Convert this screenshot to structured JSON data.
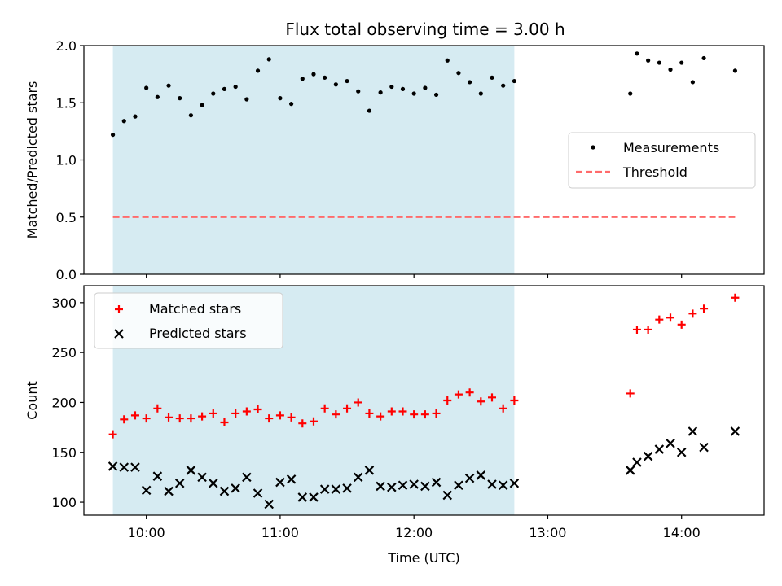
{
  "title": "Flux total observing time = 3.00 h",
  "colors": {
    "shade": "#add8e6",
    "measurement": "#000000",
    "threshold": "#ff6b6b",
    "matched": "#ff0000",
    "predicted": "#000000"
  },
  "chart_data": [
    {
      "type": "scatter",
      "ylabel": "Matched/Predicted stars",
      "xlabel": "",
      "xlim": [
        "09:32",
        "14:37"
      ],
      "ylim": [
        0,
        2.0
      ],
      "yticks": [
        0.0,
        0.5,
        1.0,
        1.5,
        2.0
      ],
      "ytick_labels": [
        "0.0",
        "0.5",
        "1.0",
        "1.5",
        "2.0"
      ],
      "shaded_interval": [
        "09:45",
        "12:45"
      ],
      "legend_position": "center-right",
      "threshold": {
        "name": "Threshold",
        "y": 0.5,
        "x_range": [
          "09:45",
          "14:24"
        ]
      },
      "series": [
        {
          "name": "Measurements",
          "x": [
            "09:45",
            "09:50",
            "09:55",
            "10:00",
            "10:05",
            "10:10",
            "10:15",
            "10:20",
            "10:25",
            "10:30",
            "10:35",
            "10:40",
            "10:45",
            "10:50",
            "10:55",
            "11:00",
            "11:05",
            "11:10",
            "11:15",
            "11:20",
            "11:25",
            "11:30",
            "11:35",
            "11:40",
            "11:45",
            "11:50",
            "11:55",
            "12:00",
            "12:05",
            "12:10",
            "12:15",
            "12:20",
            "12:25",
            "12:30",
            "12:35",
            "12:40",
            "12:45",
            "13:37",
            "13:40",
            "13:45",
            "13:50",
            "13:55",
            "14:00",
            "14:05",
            "14:10",
            "14:24"
          ],
          "y": [
            1.22,
            1.34,
            1.38,
            1.63,
            1.55,
            1.65,
            1.54,
            1.39,
            1.48,
            1.58,
            1.62,
            1.64,
            1.53,
            1.78,
            1.88,
            1.54,
            1.49,
            1.71,
            1.75,
            1.72,
            1.66,
            1.69,
            1.6,
            1.43,
            1.59,
            1.64,
            1.62,
            1.58,
            1.63,
            1.57,
            1.87,
            1.76,
            1.68,
            1.58,
            1.72,
            1.65,
            1.69,
            1.58,
            1.93,
            1.87,
            1.85,
            1.79,
            1.85,
            1.68,
            1.89,
            1.78
          ]
        }
      ]
    },
    {
      "type": "scatter",
      "ylabel": "Count",
      "xlabel": "Time (UTC)",
      "xlim": [
        "09:32",
        "14:37"
      ],
      "ylim": [
        87,
        317
      ],
      "yticks": [
        100,
        150,
        200,
        250,
        300
      ],
      "ytick_labels": [
        "100",
        "150",
        "200",
        "250",
        "300"
      ],
      "xticks": [
        "10:00",
        "11:00",
        "12:00",
        "13:00",
        "14:00"
      ],
      "xtick_labels": [
        "10:00",
        "11:00",
        "12:00",
        "13:00",
        "14:00"
      ],
      "shaded_interval": [
        "09:45",
        "12:45"
      ],
      "legend_position": "upper-left",
      "series": [
        {
          "name": "Matched stars",
          "marker": "plus",
          "x": [
            "09:45",
            "09:50",
            "09:55",
            "10:00",
            "10:05",
            "10:10",
            "10:15",
            "10:20",
            "10:25",
            "10:30",
            "10:35",
            "10:40",
            "10:45",
            "10:50",
            "10:55",
            "11:00",
            "11:05",
            "11:10",
            "11:15",
            "11:20",
            "11:25",
            "11:30",
            "11:35",
            "11:40",
            "11:45",
            "11:50",
            "11:55",
            "12:00",
            "12:05",
            "12:10",
            "12:15",
            "12:20",
            "12:25",
            "12:30",
            "12:35",
            "12:40",
            "12:45",
            "13:37",
            "13:40",
            "13:45",
            "13:50",
            "13:55",
            "14:00",
            "14:05",
            "14:10",
            "14:24"
          ],
          "y": [
            168,
            183,
            187,
            184,
            194,
            185,
            184,
            184,
            186,
            189,
            180,
            189,
            191,
            193,
            184,
            187,
            185,
            179,
            181,
            194,
            188,
            194,
            200,
            189,
            186,
            191,
            191,
            188,
            188,
            189,
            202,
            208,
            210,
            201,
            205,
            194,
            202,
            209,
            273,
            273,
            283,
            285,
            278,
            289,
            294,
            305
          ]
        },
        {
          "name": "Predicted stars",
          "marker": "x",
          "x": [
            "09:45",
            "09:50",
            "09:55",
            "10:00",
            "10:05",
            "10:10",
            "10:15",
            "10:20",
            "10:25",
            "10:30",
            "10:35",
            "10:40",
            "10:45",
            "10:50",
            "10:55",
            "11:00",
            "11:05",
            "11:10",
            "11:15",
            "11:20",
            "11:25",
            "11:30",
            "11:35",
            "11:40",
            "11:45",
            "11:50",
            "11:55",
            "12:00",
            "12:05",
            "12:10",
            "12:15",
            "12:20",
            "12:25",
            "12:30",
            "12:35",
            "12:40",
            "12:45",
            "13:37",
            "13:40",
            "13:45",
            "13:50",
            "13:55",
            "14:00",
            "14:05",
            "14:10",
            "14:24"
          ],
          "y": [
            136,
            135,
            135,
            112,
            126,
            111,
            119,
            132,
            125,
            119,
            111,
            114,
            125,
            109,
            98,
            120,
            123,
            105,
            105,
            113,
            113,
            114,
            125,
            132,
            116,
            115,
            117,
            118,
            116,
            120,
            107,
            117,
            124,
            127,
            118,
            117,
            119,
            132,
            140,
            146,
            153,
            159,
            150,
            171,
            155,
            171
          ]
        }
      ]
    }
  ]
}
